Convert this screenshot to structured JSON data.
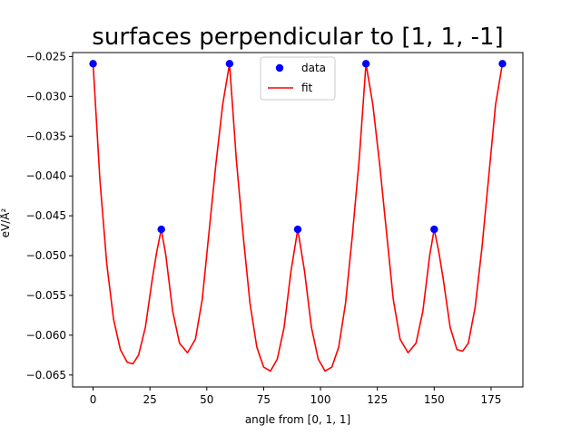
{
  "chart_data": {
    "type": "scatter",
    "title": "surfaces perpendicular to [1, 1, -1]",
    "xlabel": "angle from [0, 1, 1]",
    "ylabel": "eV/Å²",
    "xlim": [
      -9,
      189
    ],
    "ylim": [
      -0.0665,
      -0.0245
    ],
    "xticks": [
      0,
      25,
      50,
      75,
      100,
      125,
      150,
      175
    ],
    "yticks": [
      -0.065,
      -0.06,
      -0.055,
      -0.05,
      -0.045,
      -0.04,
      -0.035,
      -0.03,
      -0.025
    ],
    "xtick_labels": [
      "0",
      "25",
      "50",
      "75",
      "100",
      "125",
      "150",
      "175"
    ],
    "ytick_labels": [
      "−0.065",
      "−0.060",
      "−0.055",
      "−0.050",
      "−0.045",
      "−0.040",
      "−0.035",
      "−0.030",
      "−0.025"
    ],
    "legend": {
      "placement": "upper-center",
      "entries": [
        "data",
        "fit"
      ]
    },
    "grid": false,
    "series": [
      {
        "name": "data",
        "kind": "scatter",
        "color": "#0000ff",
        "x": [
          0,
          30,
          60,
          90,
          120,
          150,
          180
        ],
        "y": [
          -0.0259,
          -0.0467,
          -0.0259,
          -0.0467,
          -0.0259,
          -0.0467,
          -0.0259
        ]
      },
      {
        "name": "fit",
        "kind": "line",
        "color": "#ff0000",
        "x": [
          0,
          3,
          6,
          9,
          12,
          15,
          17.5,
          20,
          23,
          26,
          28,
          30,
          32,
          35,
          38,
          41.5,
          45,
          48,
          51,
          54,
          57,
          60,
          63,
          66,
          69,
          72,
          75,
          78,
          81,
          84,
          87,
          90,
          93,
          96,
          99,
          102,
          105,
          108,
          111,
          114,
          117,
          120,
          123,
          126,
          129,
          132,
          135,
          138.5,
          142,
          145,
          148,
          150,
          152,
          154,
          157,
          160,
          162.5,
          165,
          168,
          171,
          174,
          177,
          180
        ],
        "y": [
          -0.0259,
          -0.0405,
          -0.051,
          -0.058,
          -0.0618,
          -0.0634,
          -0.0636,
          -0.0625,
          -0.059,
          -0.053,
          -0.0495,
          -0.0467,
          -0.05,
          -0.057,
          -0.061,
          -0.0622,
          -0.0605,
          -0.0555,
          -0.047,
          -0.0385,
          -0.031,
          -0.0259,
          -0.038,
          -0.0475,
          -0.056,
          -0.0615,
          -0.064,
          -0.0645,
          -0.063,
          -0.059,
          -0.052,
          -0.0467,
          -0.052,
          -0.059,
          -0.063,
          -0.0645,
          -0.064,
          -0.0615,
          -0.056,
          -0.0475,
          -0.038,
          -0.0259,
          -0.031,
          -0.0385,
          -0.047,
          -0.0555,
          -0.0605,
          -0.0622,
          -0.061,
          -0.057,
          -0.05,
          -0.0467,
          -0.0495,
          -0.053,
          -0.059,
          -0.0618,
          -0.062,
          -0.061,
          -0.0565,
          -0.049,
          -0.04,
          -0.031,
          -0.0259
        ]
      }
    ]
  }
}
